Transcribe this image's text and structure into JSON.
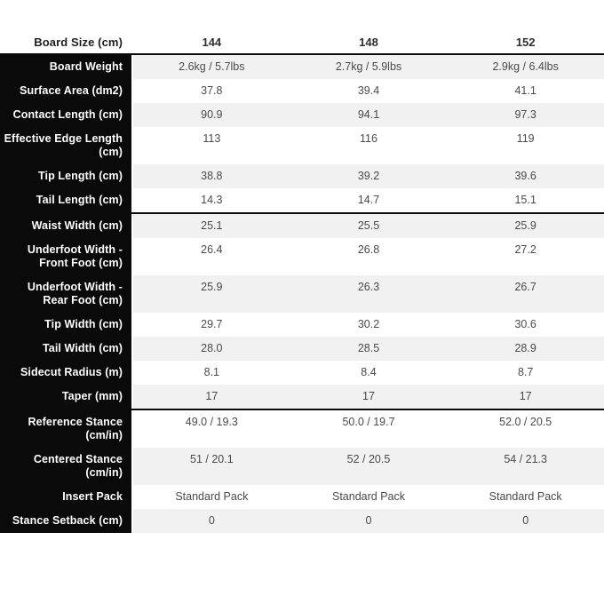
{
  "table": {
    "header": {
      "label": "Board Size (cm)",
      "values": [
        "144",
        "148",
        "152"
      ]
    },
    "rows": [
      {
        "label": "Board Weight",
        "values": [
          "2.6kg / 5.7lbs",
          "2.7kg / 5.9lbs",
          "2.9kg / 6.4lbs"
        ],
        "separator_above": false
      },
      {
        "label": "Surface Area (dm2)",
        "values": [
          "37.8",
          "39.4",
          "41.1"
        ],
        "separator_above": false
      },
      {
        "label": "Contact Length (cm)",
        "values": [
          "90.9",
          "94.1",
          "97.3"
        ],
        "separator_above": false
      },
      {
        "label": "Effective Edge Length (cm)",
        "values": [
          "113",
          "116",
          "119"
        ],
        "separator_above": false
      },
      {
        "label": "Tip Length (cm)",
        "values": [
          "38.8",
          "39.2",
          "39.6"
        ],
        "separator_above": false
      },
      {
        "label": "Tail Length (cm)",
        "values": [
          "14.3",
          "14.7",
          "15.1"
        ],
        "separator_above": false
      },
      {
        "label": "Waist Width (cm)",
        "values": [
          "25.1",
          "25.5",
          "25.9"
        ],
        "separator_above": true
      },
      {
        "label": "Underfoot Width - Front Foot (cm)",
        "values": [
          "26.4",
          "26.8",
          "27.2"
        ],
        "separator_above": false
      },
      {
        "label": "Underfoot Width - Rear Foot (cm)",
        "values": [
          "25.9",
          "26.3",
          "26.7"
        ],
        "separator_above": false
      },
      {
        "label": "Tip Width (cm)",
        "values": [
          "29.7",
          "30.2",
          "30.6"
        ],
        "separator_above": false
      },
      {
        "label": "Tail Width (cm)",
        "values": [
          "28.0",
          "28.5",
          "28.9"
        ],
        "separator_above": false
      },
      {
        "label": "Sidecut Radius (m)",
        "values": [
          "8.1",
          "8.4",
          "8.7"
        ],
        "separator_above": false
      },
      {
        "label": "Taper (mm)",
        "values": [
          "17",
          "17",
          "17"
        ],
        "separator_above": false
      },
      {
        "label": "Reference Stance (cm/in)",
        "values": [
          "49.0 / 19.3",
          "50.0 / 19.7",
          "52.0 / 20.5"
        ],
        "separator_above": true
      },
      {
        "label": "Centered Stance (cm/in)",
        "values": [
          "51 / 20.1",
          "52 / 20.5",
          "54 / 21.3"
        ],
        "separator_above": false
      },
      {
        "label": "Insert Pack",
        "values": [
          "Standard Pack",
          "Standard Pack",
          "Standard Pack"
        ],
        "separator_above": false
      },
      {
        "label": "Stance Setback (cm)",
        "values": [
          "0",
          "0",
          "0"
        ],
        "separator_above": false
      }
    ],
    "colors": {
      "label_column_bg": "#0a0a0a",
      "label_text": "#ffffff",
      "alt_row_bg": "#f1f1f1",
      "value_text": "#4a4a4a",
      "separator": "#0a0a0a"
    }
  }
}
